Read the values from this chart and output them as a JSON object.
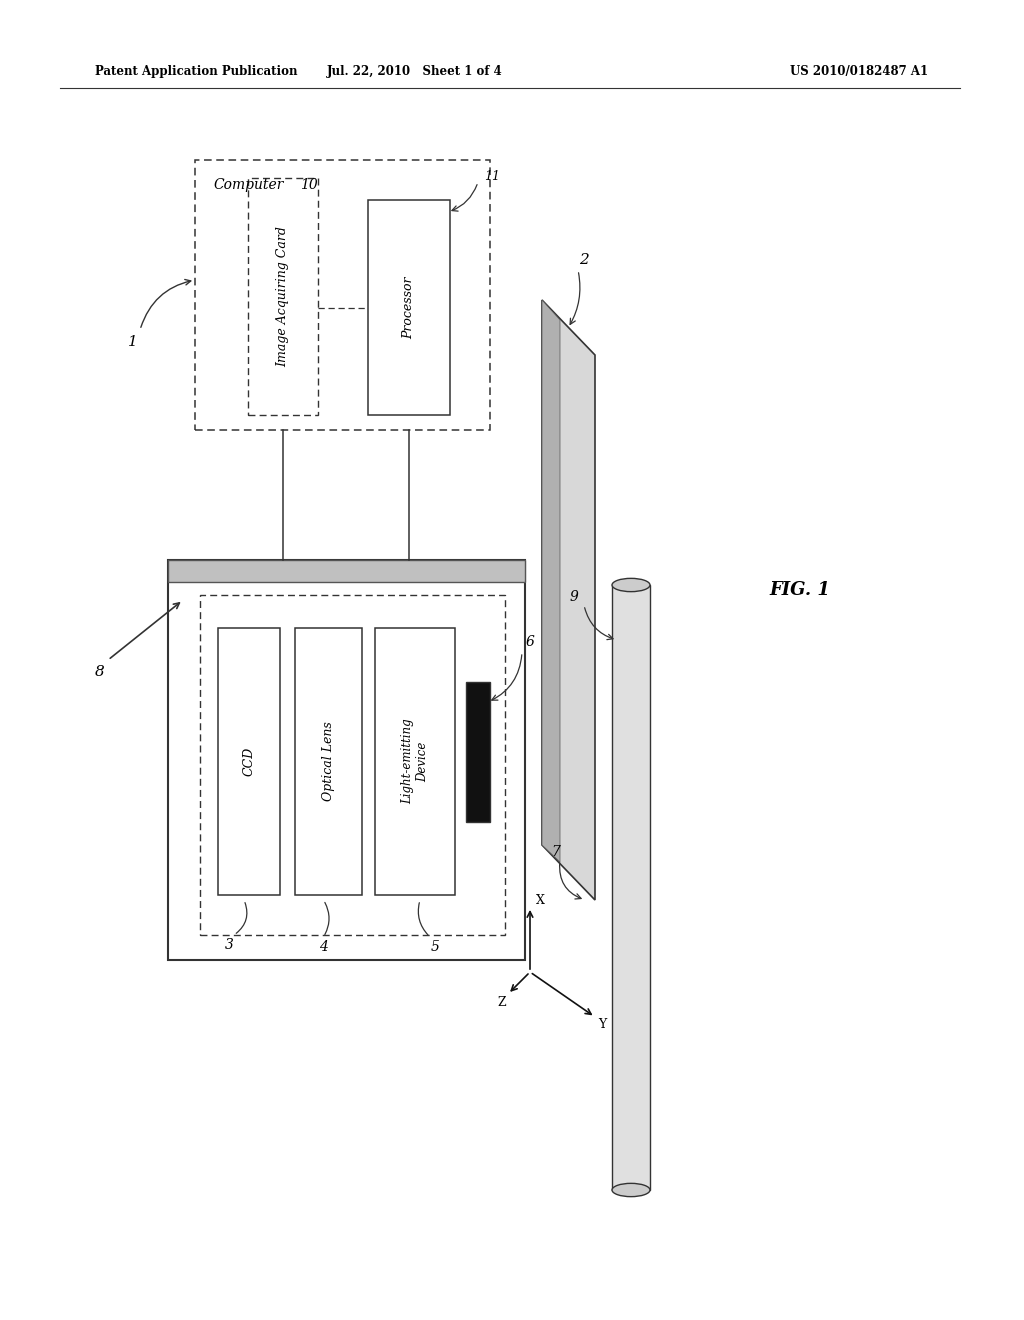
{
  "bg_color": "#ffffff",
  "header_left": "Patent Application Publication",
  "header_mid": "Jul. 22, 2010   Sheet 1 of 4",
  "header_right": "US 2010/0182487 A1",
  "fig_label": "FIG. 1",
  "label_1": "1",
  "label_2": "2",
  "label_3": "3",
  "label_4": "4",
  "label_5": "5",
  "label_6": "6",
  "label_7": "7",
  "label_8": "8",
  "label_9": "9",
  "label_10": "10",
  "label_11": "11",
  "computer_label": "Computer",
  "iac_label": "Image Acquiring Card",
  "proc_label": "Processor",
  "ccd_label": "CCD",
  "lens_label": "Optical Lens",
  "led_label": "Light-emitting\nDevice",
  "axis_x": "X",
  "axis_y": "Y",
  "axis_z": "Z"
}
